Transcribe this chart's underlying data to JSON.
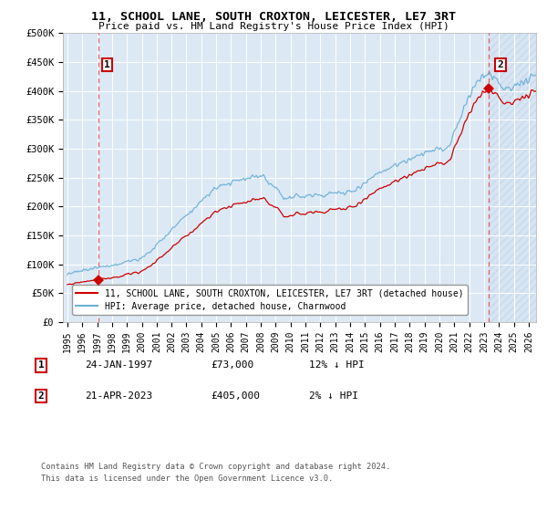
{
  "title": "11, SCHOOL LANE, SOUTH CROXTON, LEICESTER, LE7 3RT",
  "subtitle": "Price paid vs. HM Land Registry's House Price Index (HPI)",
  "ylabel_ticks": [
    "£0",
    "£50K",
    "£100K",
    "£150K",
    "£200K",
    "£250K",
    "£300K",
    "£350K",
    "£400K",
    "£450K",
    "£500K"
  ],
  "ytick_values": [
    0,
    50000,
    100000,
    150000,
    200000,
    250000,
    300000,
    350000,
    400000,
    450000,
    500000
  ],
  "ylim": [
    0,
    500000
  ],
  "xlim_start": 1994.7,
  "xlim_end": 2026.5,
  "sale1_date": 1997.07,
  "sale1_price": 73000,
  "sale1_label": "1",
  "sale2_date": 2023.31,
  "sale2_price": 405000,
  "sale2_label": "2",
  "hpi_color": "#6baed6",
  "property_color": "#cc0000",
  "dashed_color": "#e06060",
  "bg_color": "#dce9f5",
  "hatch_color": "#b8cfe8",
  "legend_label_property": "11, SCHOOL LANE, SOUTH CROXTON, LEICESTER, LE7 3RT (detached house)",
  "legend_label_hpi": "HPI: Average price, detached house, Charnwood",
  "annotation1_date": "24-JAN-1997",
  "annotation1_price": "£73,000",
  "annotation1_hpi": "12% ↓ HPI",
  "annotation2_date": "21-APR-2023",
  "annotation2_price": "£405,000",
  "annotation2_hpi": "2% ↓ HPI",
  "footer": "Contains HM Land Registry data © Crown copyright and database right 2024.\nThis data is licensed under the Open Government Licence v3.0.",
  "xlabel_years": [
    1995,
    1996,
    1997,
    1998,
    1999,
    2000,
    2001,
    2002,
    2003,
    2004,
    2005,
    2006,
    2007,
    2008,
    2009,
    2010,
    2011,
    2012,
    2013,
    2014,
    2015,
    2016,
    2017,
    2018,
    2019,
    2020,
    2021,
    2022,
    2023,
    2024,
    2025,
    2026
  ]
}
